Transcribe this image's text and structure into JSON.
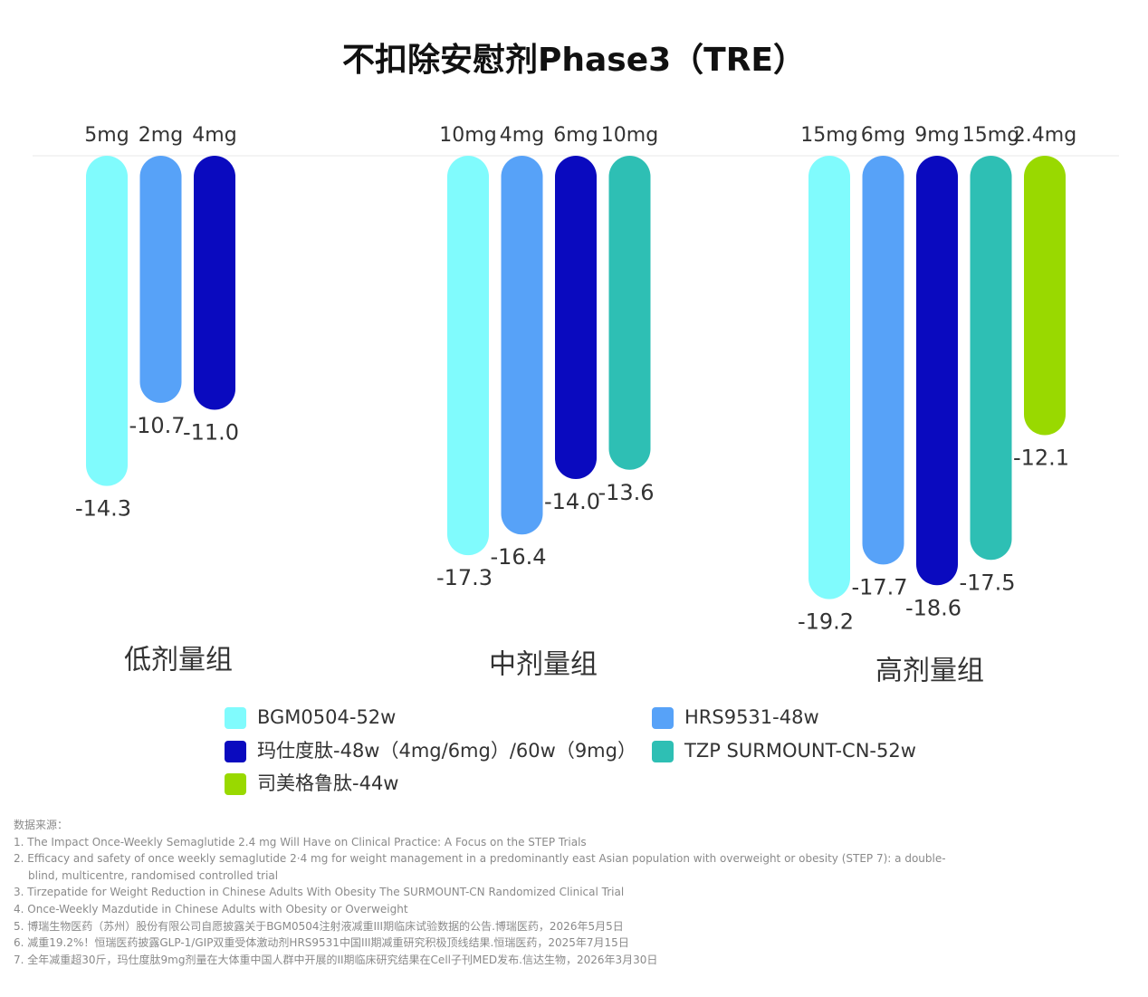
{
  "chart_data": {
    "type": "bar",
    "title": "不扣除安慰剂Phase3（TRE）",
    "categories": [
      "低剂量组",
      "中剂量组",
      "高剂量组"
    ],
    "ylim": [
      0,
      -20
    ],
    "series": [
      {
        "name": "BGM0504-52w",
        "color": "#80fbfd",
        "values": [
          -14.3,
          -17.3,
          -19.2
        ],
        "value_labels": [
          "-14.3",
          "-17.3",
          "-19.2"
        ],
        "doses": [
          "5mg",
          "10mg",
          "15mg"
        ]
      },
      {
        "name": "HRS9531-48w",
        "color": "#57a2f8",
        "values": [
          -10.7,
          -16.4,
          -17.7
        ],
        "value_labels": [
          "-10.7",
          "-16.4",
          "-17.7"
        ],
        "doses": [
          "2mg",
          "4mg",
          "6mg"
        ]
      },
      {
        "name": "玛仕度肽-48w（4mg/6mg）/60w（9mg）",
        "color": "#0a0abf",
        "values": [
          -11.0,
          -14.0,
          -18.6
        ],
        "value_labels": [
          "-11.0",
          "-14.0",
          "-18.6"
        ],
        "doses": [
          "4mg",
          "6mg",
          "9mg"
        ]
      },
      {
        "name": "TZP SURMOUNT-CN-52w",
        "color": "#2ebfb4",
        "values": [
          null,
          -13.6,
          -17.5
        ],
        "value_labels": [
          null,
          "-13.6",
          "-17.5"
        ],
        "doses": [
          null,
          "10mg",
          "15mg"
        ]
      },
      {
        "name": "司美格鲁肽-44w",
        "color": "#99d900",
        "values": [
          null,
          null,
          -12.1
        ],
        "value_labels": [
          null,
          null,
          "-12.1"
        ],
        "doses": [
          null,
          null,
          "2.4mg"
        ]
      }
    ]
  },
  "sources": {
    "heading": "数据来源：",
    "items": [
      "1. The Impact Once-Weekly Semaglutide 2.4 mg Will Have on Clinical Practice: A Focus on the STEP Trials",
      "2. Efficacy and safety of once weekly semaglutide 2·4 mg for weight management in a predominantly east Asian population with overweight or obesity (STEP 7): a double-blind, multicentre, randomised controlled trial",
      "3. Tirzepatide for Weight Reduction in Chinese Adults With Obesity The SURMOUNT-CN Randomized Clinical Trial",
      "4. Once-Weekly Mazdutide in Chinese Adults with Obesity or Overweight",
      "5. 博瑞生物医药（苏州）股份有限公司自愿披露关于BGM0504注射液减重III期临床试验数据的公告.博瑞医药，2026年5月5日",
      "6. 减重19.2%！恒瑞医药披露GLP-1/GIP双重受体激动剂HRS9531中国III期减重研究积极顶线结果.恒瑞医药，2025年7月15日",
      "7. 全年减重超30斤，玛仕度肽9mg剂量在大体重中国人群中开展的II期临床研究结果在Cell子刊MED发布.信达生物，2026年3月30日"
    ]
  }
}
